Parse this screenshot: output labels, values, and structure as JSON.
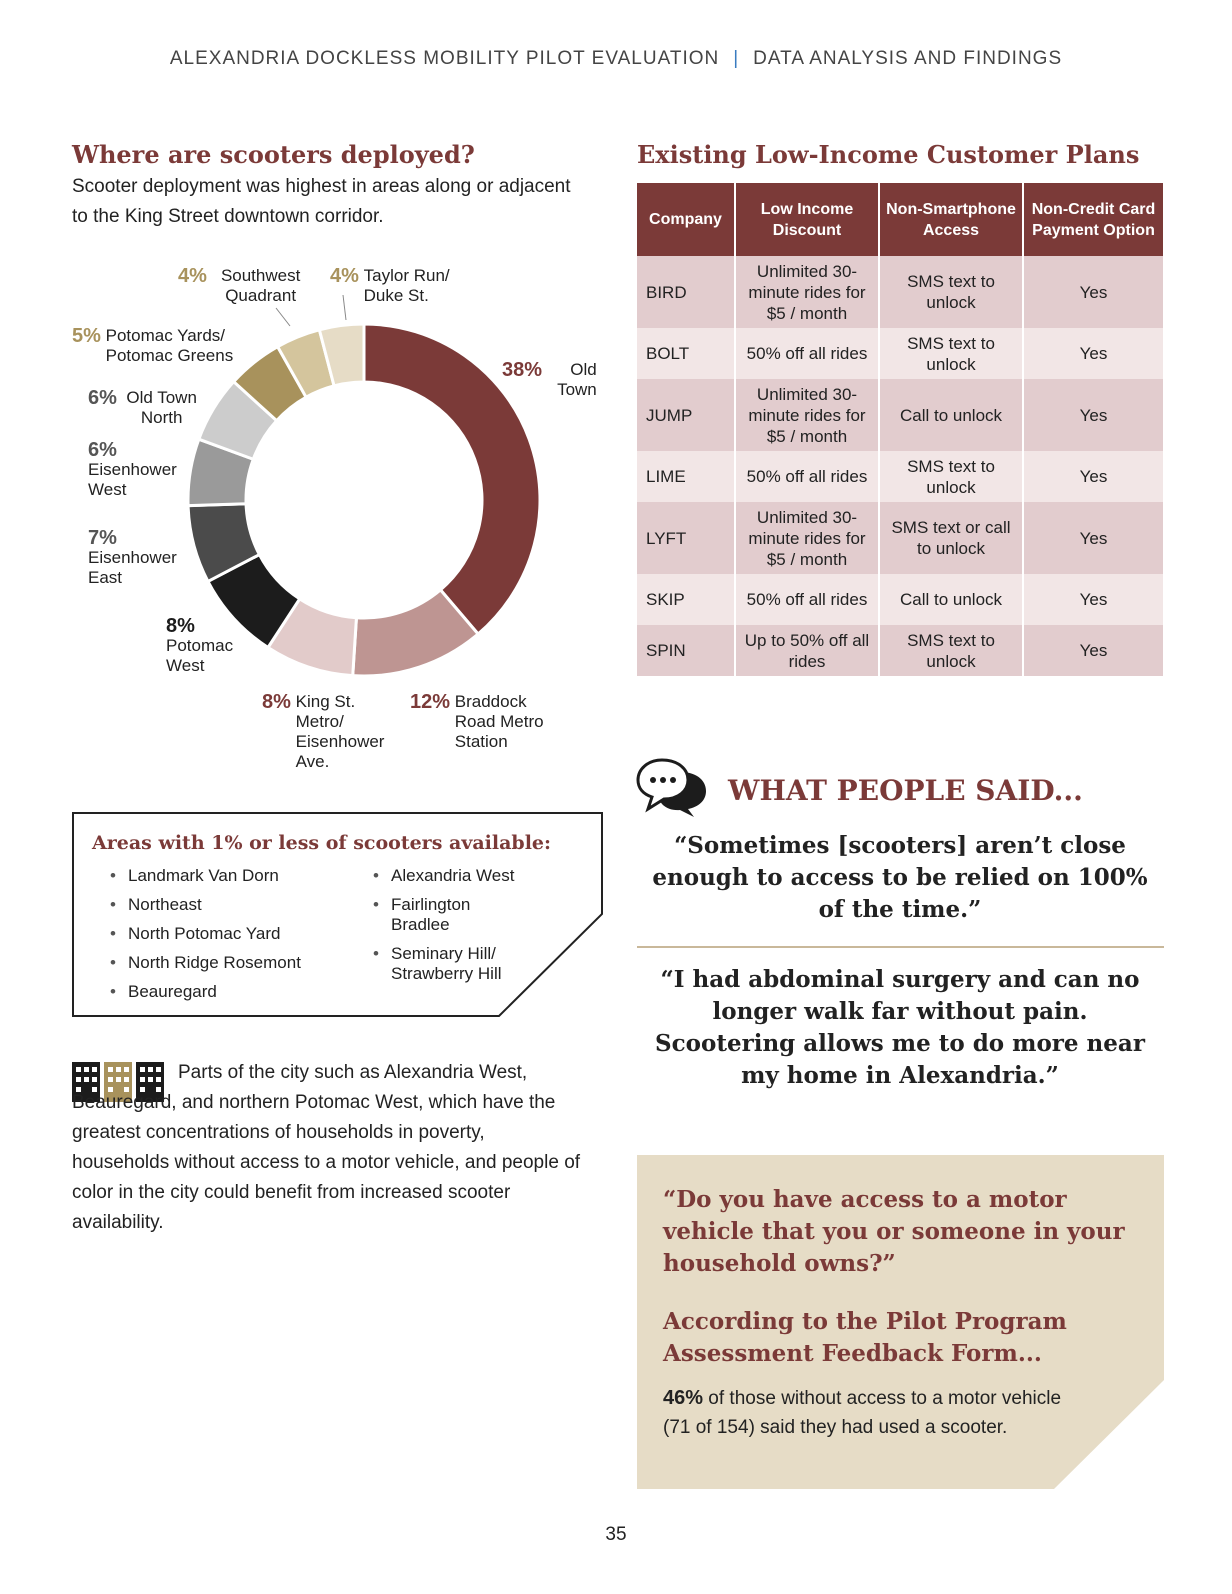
{
  "header": {
    "left": "ALEXANDRIA DOCKLESS MOBILITY PILOT EVALUATION",
    "separator": "|",
    "right": "DATA ANALYSIS AND FINDINGS"
  },
  "left": {
    "title": "Where are scooters deployed?",
    "subtitle": "Scooter deployment was highest in areas along or adjacent to the King Street downtown corridor."
  },
  "chart_data": {
    "type": "pie",
    "style": "donut",
    "slices": [
      {
        "pct_label": "38%",
        "name": "Old Town",
        "value": 38,
        "color": "#7b3a38"
      },
      {
        "pct_label": "12%",
        "name": "Braddock Road Metro Station",
        "value": 12,
        "color": "#be9592"
      },
      {
        "pct_label": "8%",
        "name": "King St. Metro/ Eisenhower Ave.",
        "value": 8,
        "color": "#e2cbca"
      },
      {
        "pct_label": "8%",
        "name": "Potomac West",
        "value": 8,
        "color": "#1c1c1c"
      },
      {
        "pct_label": "7%",
        "name": "Eisenhower East",
        "value": 7,
        "color": "#4b4b4b"
      },
      {
        "pct_label": "6%",
        "name": "Eisenhower West",
        "value": 6,
        "color": "#9a9a9a"
      },
      {
        "pct_label": "6%",
        "name": "Old Town North",
        "value": 6,
        "color": "#cccccc"
      },
      {
        "pct_label": "5%",
        "name": "Potomac Yards/ Potomac Greens",
        "value": 5,
        "color": "#a8925c"
      },
      {
        "pct_label": "4%",
        "name": "Southwest Quadrant",
        "value": 4,
        "color": "#d4c59d"
      },
      {
        "pct_label": "4%",
        "name": "Taylor Run/ Duke St.",
        "value": 4,
        "color": "#e6dcc6"
      }
    ]
  },
  "areas": {
    "title": "Areas with 1% or less of scooters available:",
    "col1": [
      "Landmark Van Dorn",
      "Northeast",
      "North Potomac Yard",
      "North Ridge Rosemont",
      "Beauregard"
    ],
    "col2": [
      "Alexandria West",
      "Fairlington Bradlee",
      "Seminary Hill/ Strawberry Hill"
    ]
  },
  "body_text": "Parts of the city such as Alexandria West, Beauregard, and northern Potomac West, which have the greatest concentrations of households in poverty, households without access to a motor vehicle, and people of color in the city could benefit from increased scooter availability.",
  "plans": {
    "title": "Existing Low-Income Customer Plans",
    "headers": [
      "Company",
      "Low Income Discount",
      "Non-Smartphone Access",
      "Non-Credit Card Payment Option"
    ],
    "rows": [
      [
        "BIRD",
        "Unlimited 30-minute rides for $5 / month",
        "SMS text to unlock",
        "Yes"
      ],
      [
        "BOLT",
        "50% off all rides",
        "SMS text to unlock",
        "Yes"
      ],
      [
        "JUMP",
        "Unlimited 30-minute rides for $5 / month",
        "Call to unlock",
        "Yes"
      ],
      [
        "LIME",
        "50% off all rides",
        "SMS text to unlock",
        "Yes"
      ],
      [
        "LYFT",
        "Unlimited 30-minute rides for $5 / month",
        "SMS text or call to unlock",
        "Yes"
      ],
      [
        "SKIP",
        "50% off all rides",
        "Call to unlock",
        "Yes"
      ],
      [
        "SPIN",
        "Up to 50% off all rides",
        "SMS text to unlock",
        "Yes"
      ]
    ]
  },
  "said": {
    "title": "WHAT PEOPLE SAID...",
    "quote1": "“Sometimes [scooters] aren’t close enough to access to be relied on 100% of the time.”",
    "quote2": "“I had abdominal surgery and can no longer walk far without pain. Scootering allows me to do more near my home in Alexandria.”"
  },
  "callout": {
    "question": "“Do you have access to a motor vehicle that you or someone in your household owns?”",
    "heading": "According to the Pilot Program Assessment Feedback Form...",
    "stat": "46%",
    "text": " of those without access to a motor vehicle (71 of 154) said they had used a scooter."
  },
  "page_number": "35",
  "colors": {
    "maroon": "#7b3a38",
    "tan": "#e6dcc6",
    "gold": "#a8925c",
    "row_dark": "#e2ccce",
    "row_light": "#f2e6e6",
    "header_separator": "#3a7cc0"
  }
}
